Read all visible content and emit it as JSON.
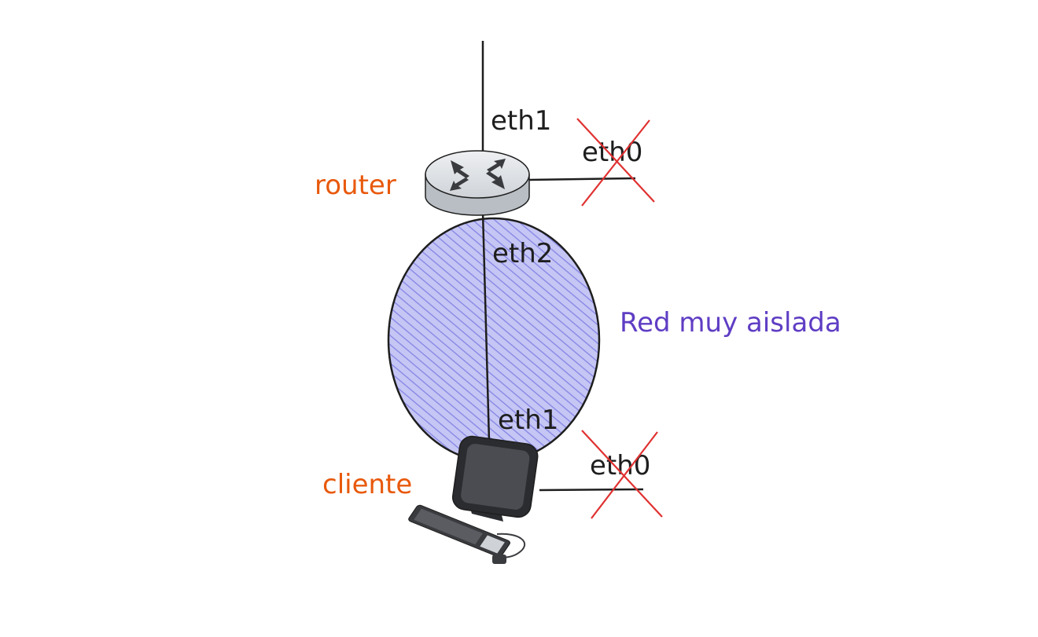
{
  "colors": {
    "node_label": "#e8590c",
    "network_label": "#5f3dc4",
    "network_fill": "#b0b0f0",
    "network_hatch": "#8c8ce6",
    "cross": "#e03131",
    "line": "#1e1e1e",
    "router_body": "#d6d9dd",
    "monitor": "#3a3b3f"
  },
  "nodes": {
    "router": {
      "label": "router",
      "icon": "router-icon"
    },
    "client": {
      "label": "cliente",
      "icon": "computer-icon"
    }
  },
  "network": {
    "label": "Red muy aislada"
  },
  "interfaces": {
    "router_eth1": "eth1",
    "router_eth0": "eth0",
    "router_eth2": "eth2",
    "client_eth1": "eth1",
    "client_eth0": "eth0"
  }
}
